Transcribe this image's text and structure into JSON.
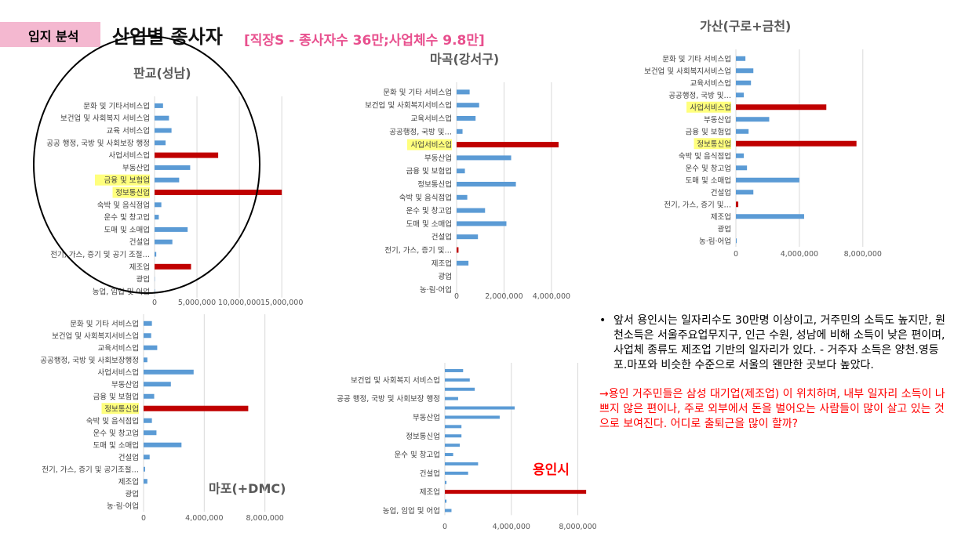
{
  "header": {
    "tag": "입지 분석",
    "title": "산업별 종사자",
    "subtitle": "[직장S - 종사자수 36만;사업체수 9.8만]"
  },
  "colors": {
    "blue": "#5b9bd5",
    "red": "#c00000",
    "highlight": "#ffff66",
    "tag": "#f4b8d0",
    "subtitle": "#e8508e"
  },
  "chart_data": [
    {
      "type": "bar",
      "orientation": "horizontal",
      "title": "판교(성남)",
      "categories": [
        "문화 및 기타서비스업",
        "보건업 및 사회복지 서비스업",
        "교육 서비스업",
        "공공 행정, 국방 및 사회보장 행정",
        "사업서비스업",
        "부동산업",
        "금융 및 보험업",
        "정보통신업",
        "숙박 및 음식점업",
        "운수 및 창고업",
        "도매 및 소매업",
        "건설업",
        "전기, 가스, 증기 및 공기 조절…",
        "제조업",
        "광업",
        "농업, 임업 및 어업"
      ],
      "values": [
        1000000,
        1700000,
        2000000,
        1300000,
        7500000,
        4200000,
        2900000,
        15000000,
        800000,
        500000,
        3900000,
        2100000,
        200000,
        4300000,
        30000,
        50000
      ],
      "highlighted": [
        6,
        7
      ],
      "red_bars": [
        4,
        7,
        13
      ],
      "xlim": [
        0,
        16000000
      ],
      "xticks": [
        0,
        5000000,
        10000000,
        15000000
      ],
      "xtick_labels": [
        "0",
        "5,000,000",
        "10,000,000",
        "15,000,000"
      ]
    },
    {
      "type": "bar",
      "orientation": "horizontal",
      "title": "마곡(강서구)",
      "categories": [
        "문화 및 기타 서비스업",
        "보건업 및 사회복지서비스업",
        "교육서비스업",
        "공공행정, 국방 및…",
        "사업서비스업",
        "부동산업",
        "금융 및 보험업",
        "정보통신업",
        "숙박 및 음식점업",
        "운수 및 창고업",
        "도매 및 소매업",
        "건설업",
        "전기, 가스, 증기 및…",
        "제조업",
        "광업",
        "농·림·어업"
      ],
      "values": [
        550000,
        950000,
        800000,
        250000,
        4300000,
        2300000,
        350000,
        2500000,
        450000,
        1200000,
        2100000,
        900000,
        80000,
        500000,
        0,
        0
      ],
      "highlighted": [
        4
      ],
      "red_bars": [
        4,
        12
      ],
      "xlim": [
        0,
        4400000
      ],
      "xticks": [
        0,
        2000000,
        4000000
      ],
      "xtick_labels": [
        "0",
        "2,000,000",
        "4,000,000"
      ]
    },
    {
      "type": "bar",
      "orientation": "horizontal",
      "title": "가산(구로+금천)",
      "categories": [
        "문화 및 기타 서비스업",
        "보건업 및 사회복지서비스업",
        "교육서비스업",
        "공공행정, 국방 및…",
        "사업서비스업",
        "부동산업",
        "금융 및 보험업",
        "정보통신업",
        "숙박 및 음식점업",
        "운수 및 창고업",
        "도매 및 소매업",
        "건설업",
        "전기, 가스, 증기 및…",
        "제조업",
        "광업",
        "농·림·어업"
      ],
      "values": [
        600000,
        1100000,
        950000,
        500000,
        5700000,
        2100000,
        800000,
        7600000,
        500000,
        700000,
        4000000,
        1100000,
        150000,
        4300000,
        0,
        50000
      ],
      "highlighted": [
        4,
        7
      ],
      "red_bars": [
        4,
        7,
        12
      ],
      "xlim": [
        0,
        9000000
      ],
      "xticks": [
        0,
        4000000,
        8000000
      ],
      "xtick_labels": [
        "0",
        "4,000,000",
        "8,000,000"
      ]
    },
    {
      "type": "bar",
      "orientation": "horizontal",
      "title": "마포(+DMC)",
      "categories": [
        "문화 및 기타 서비스업",
        "보건업 및 사회복지서비스업",
        "교육서비스업",
        "공공행정, 국방 및 사회보장행정",
        "사업서비스업",
        "부동산업",
        "금융 및 보험업",
        "정보통신업",
        "숙박 및 음식점업",
        "운수 및 창고업",
        "도매 및 소매업",
        "건설업",
        "전기, 가스, 증기 및 공기조절…",
        "제조업",
        "광업",
        "농·림·어업"
      ],
      "values": [
        550000,
        500000,
        900000,
        250000,
        3300000,
        1800000,
        700000,
        6900000,
        550000,
        850000,
        2500000,
        400000,
        100000,
        250000,
        0,
        0
      ],
      "highlighted": [
        7
      ],
      "red_bars": [
        7
      ],
      "xlim": [
        0,
        9000000
      ],
      "xticks": [
        0,
        4000000,
        8000000
      ],
      "xtick_labels": [
        "0",
        "4,000,000",
        "8,000,000"
      ]
    },
    {
      "type": "bar",
      "orientation": "horizontal",
      "title": "용인시",
      "categories": [
        "",
        "보건업 및 사회복지 서비스업",
        "",
        "공공 행정, 국방 및 사회보장 행정",
        "",
        "부동산업",
        "",
        "정보통신업",
        "",
        "운수 및 창고업",
        "",
        "건설업",
        "",
        "제조업",
        "",
        "농업, 임업 및 어업"
      ],
      "values": [
        1100000,
        1500000,
        1800000,
        800000,
        4200000,
        3300000,
        1000000,
        1000000,
        900000,
        500000,
        2000000,
        1400000,
        100000,
        8500000,
        100000,
        400000
      ],
      "highlighted": [],
      "red_bars": [
        13
      ],
      "xlim": [
        0,
        8400000
      ],
      "xticks": [
        0,
        4000000,
        8000000
      ],
      "xtick_labels": [
        "0",
        "4,000,000",
        "8,000,000"
      ]
    }
  ],
  "notes": {
    "bullet": "앞서 용인시는 일자리수도 30만명 이상이고, 거주민의 소득도 높지만, 원천소득은 서울주요업무지구, 인근 수원, 성남에 비해 소득이 낮은 편이며, 사업체 종류도 제조업 기반의 일자리가 있다. - 거주자 소득은 양천.영등포.마포와 비슷한 수준으로 서울의 왠만한 곳보다 높았다.",
    "red": "→용인 거주민들은 삼성 대기업(제조업) 이 위치하며, 내부 일자리 소득이 나쁘지 않은 편이나, 주로 외부에서 돈을 벌어오는 사람들이 많이 살고 있는 것으로 보여진다. 어디로 출퇴근을 많이 할까?"
  }
}
